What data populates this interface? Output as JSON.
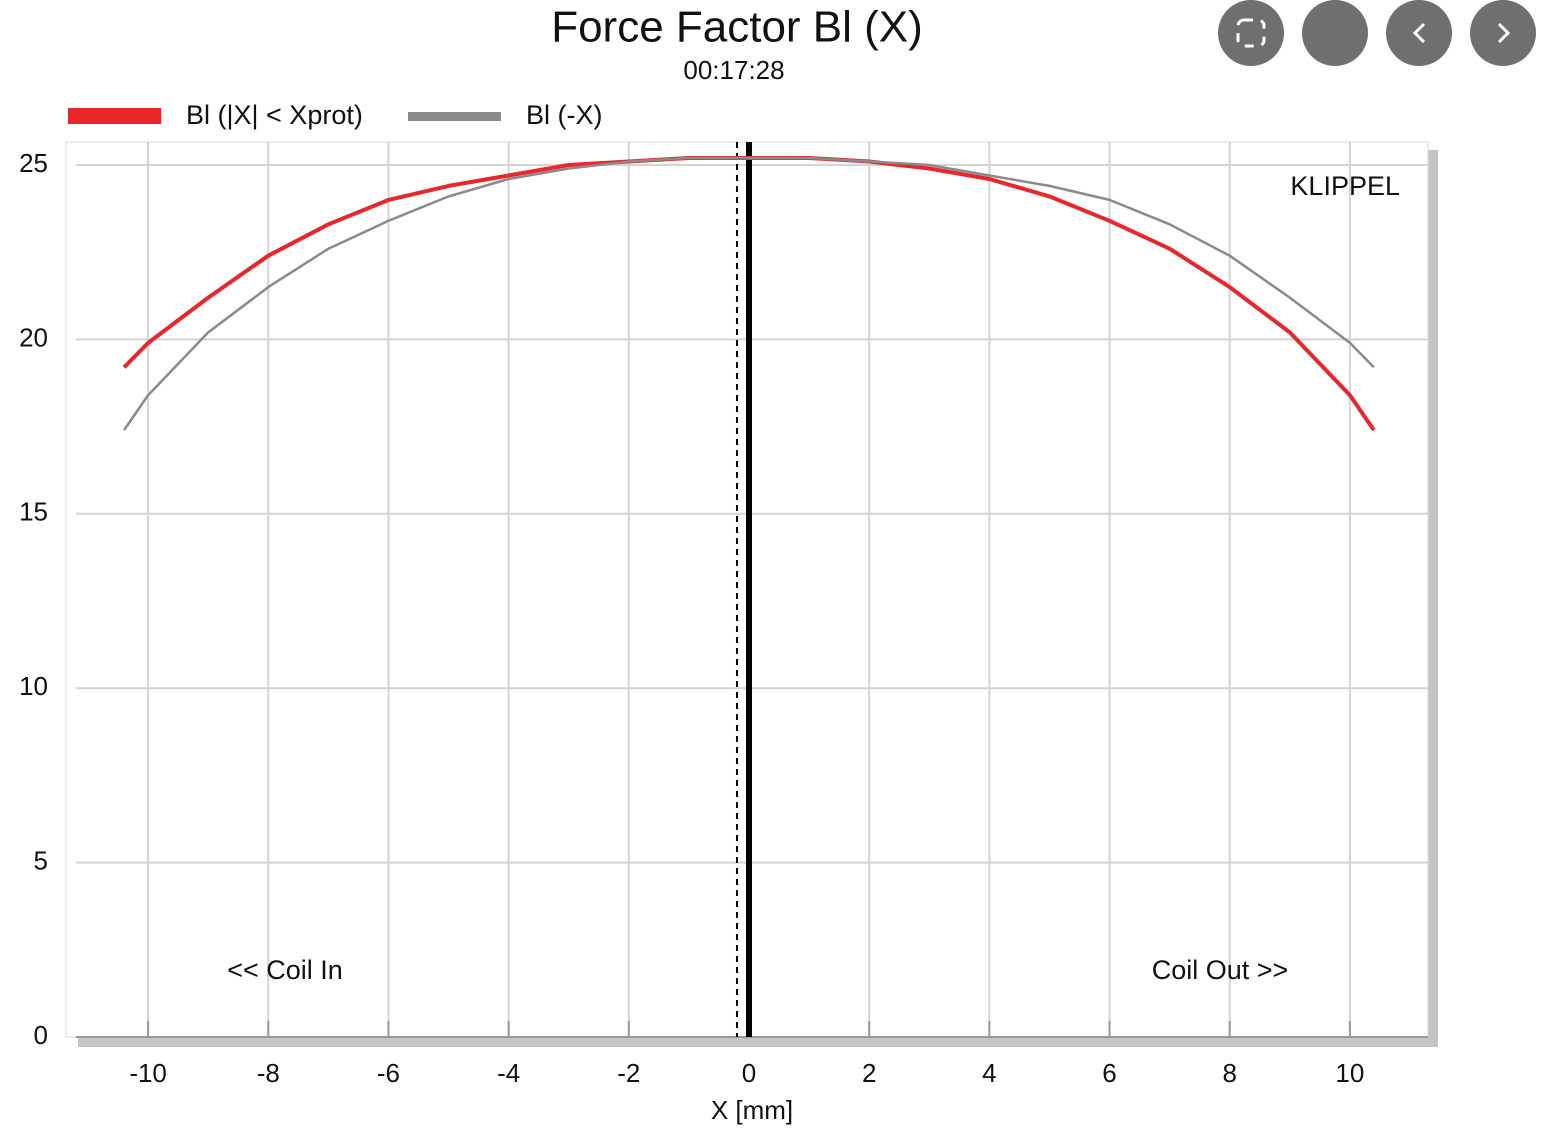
{
  "chart_data": {
    "type": "line",
    "title": "Force Factor Bl (X)",
    "subtitle": "00:17:28",
    "x_label": "X [mm]",
    "x": [
      -10.4,
      -10,
      -9,
      -8,
      -7,
      -6,
      -5,
      -4,
      -3,
      -2,
      -1,
      0,
      1,
      2,
      3,
      4,
      5,
      6,
      7,
      8,
      9,
      10,
      10.4
    ],
    "series": [
      {
        "name": "Bl (|X| < Xprot)",
        "color": "#e8262b",
        "values": [
          19.2,
          19.9,
          21.2,
          22.4,
          23.3,
          24.0,
          24.4,
          24.7,
          25.0,
          25.1,
          25.2,
          25.2,
          25.2,
          25.1,
          24.9,
          24.6,
          24.1,
          23.4,
          22.6,
          21.5,
          20.2,
          18.4,
          17.4
        ]
      },
      {
        "name": "Bl (-X)",
        "color": "#8a8a8a",
        "values": [
          17.4,
          18.4,
          20.2,
          21.5,
          22.6,
          23.4,
          24.1,
          24.6,
          24.9,
          25.1,
          25.2,
          25.2,
          25.2,
          25.1,
          25.0,
          24.7,
          24.4,
          24.0,
          23.3,
          22.4,
          21.2,
          19.9,
          19.2
        ]
      }
    ],
    "vlines": [
      {
        "x": 0,
        "style": "solid"
      },
      {
        "x": -0.2,
        "style": "dashed"
      }
    ],
    "xlim": [
      -11.2,
      11.3
    ],
    "ylim": [
      0,
      25.66
    ],
    "xticks": [
      -10,
      -8,
      -6,
      -4,
      -2,
      0,
      2,
      4,
      6,
      8,
      10
    ],
    "yticks": [
      0,
      5,
      10,
      15,
      20,
      25
    ],
    "grid": true,
    "annotations": [
      "KLIPPEL",
      "<< Coil In",
      "Coil Out >>"
    ]
  }
}
